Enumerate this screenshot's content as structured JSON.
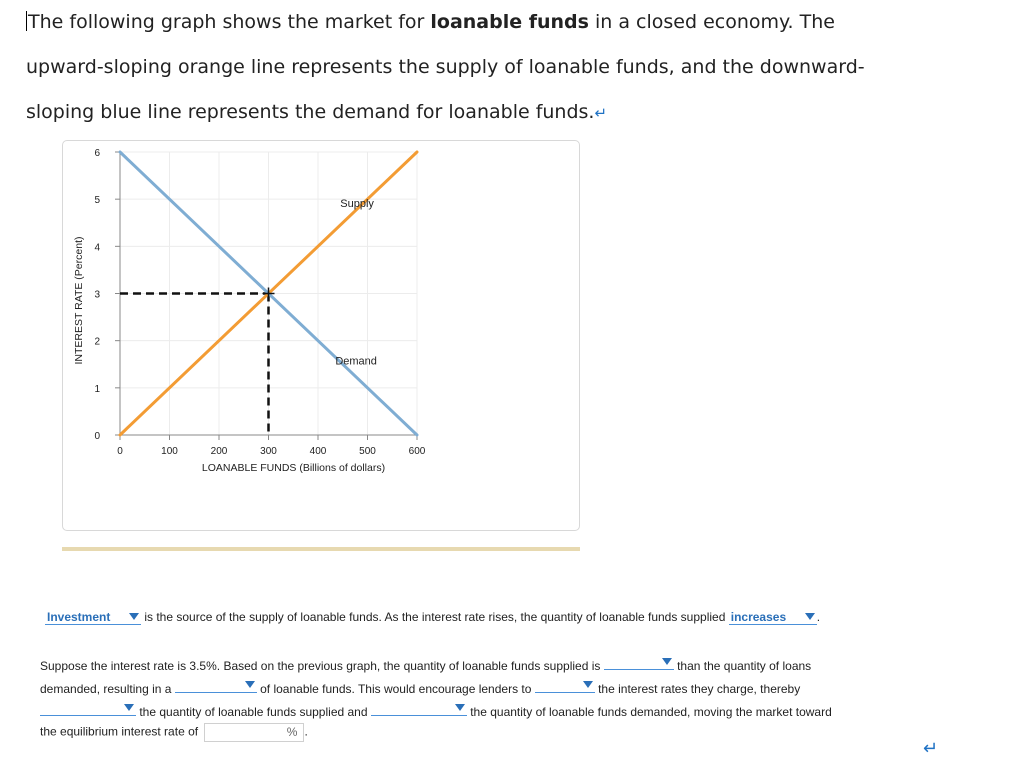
{
  "intro": {
    "line1_pre": "The following graph shows the market for ",
    "line1_bold": "loanable funds",
    "line1_post": " in a closed economy. The",
    "line2": "upward-sloping orange line represents the supply of loanable funds, and the downward-",
    "line3": "sloping blue line represents the demand for loanable funds."
  },
  "chart_data": {
    "type": "line",
    "xlabel": "LOANABLE FUNDS (Billions of dollars)",
    "ylabel": "INTEREST RATE (Percent)",
    "xlim": [
      0,
      600
    ],
    "ylim": [
      0,
      6
    ],
    "x_ticks": [
      0,
      100,
      200,
      300,
      400,
      500,
      600
    ],
    "y_ticks": [
      0,
      1,
      2,
      3,
      4,
      5,
      6
    ],
    "grid": true,
    "series": [
      {
        "name": "Supply",
        "color": "#f39c34",
        "points": [
          [
            0,
            0
          ],
          [
            600,
            6
          ]
        ]
      },
      {
        "name": "Demand",
        "color": "#7fadd3",
        "points": [
          [
            0,
            6
          ],
          [
            600,
            0
          ]
        ]
      }
    ],
    "equilibrium": {
      "x": 300,
      "y": 3
    }
  },
  "question": {
    "dd1": "Investment",
    "s1": "is the source of the supply of loanable funds. As the interest rate rises, the quantity of loanable funds supplied",
    "dd2": "increases",
    "s1_end": ".",
    "s2a": "Suppose the interest rate is 3.5%. Based on the previous graph, the quantity of loanable funds supplied is",
    "s2b": "than the quantity of loans",
    "s3a": "demanded, resulting in a",
    "s3b": "of loanable funds. This would encourage lenders to",
    "s3c": "the interest rates they charge, thereby",
    "s4a": "the quantity of loanable funds supplied and",
    "s4b": "the quantity of loanable funds demanded, moving the market toward",
    "s5a": "the equilibrium interest rate of",
    "pct": "%",
    "s5_end": "."
  },
  "icons": {
    "return": "return-arrow-icon"
  }
}
